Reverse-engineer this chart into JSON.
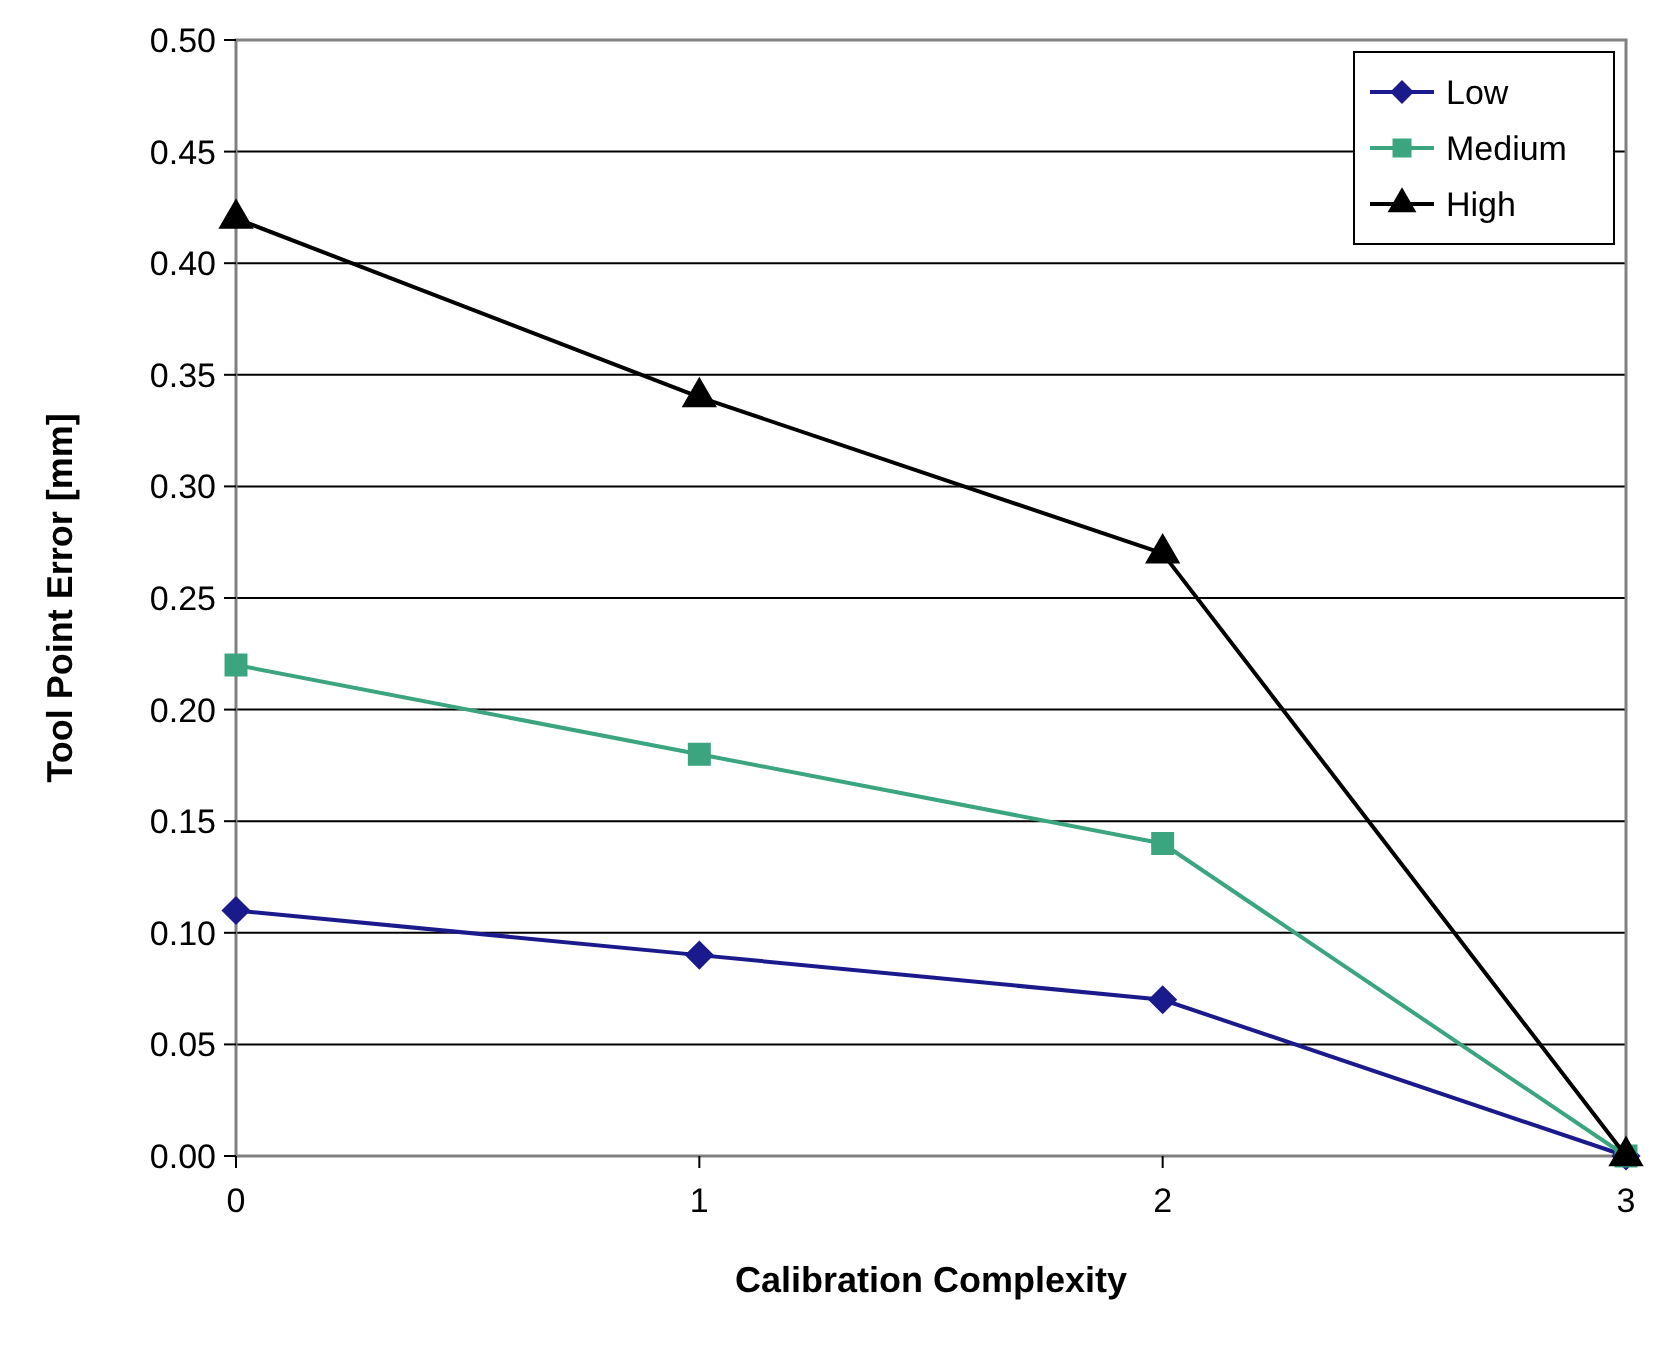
{
  "chart_data": {
    "type": "line",
    "xlabel": "Calibration Complexity",
    "ylabel": "Tool Point Error [mm]",
    "x": [
      0,
      1,
      2,
      3
    ],
    "xlim": [
      0,
      3
    ],
    "xticks": [
      0,
      1,
      2,
      3
    ],
    "ylim": [
      0,
      0.5
    ],
    "yticks": [
      {
        "value": 0,
        "label": "0.00"
      },
      {
        "value": 0.05,
        "label": "0.05"
      },
      {
        "value": 0.1,
        "label": "0.10"
      },
      {
        "value": 0.15,
        "label": "0.15"
      },
      {
        "value": 0.2,
        "label": "0.20"
      },
      {
        "value": 0.25,
        "label": "0.25"
      },
      {
        "value": 0.3,
        "label": "0.30"
      },
      {
        "value": 0.35,
        "label": "0.35"
      },
      {
        "value": 0.4,
        "label": "0.40"
      },
      {
        "value": 0.45,
        "label": "0.45"
      },
      {
        "value": 0.5,
        "label": "0.50"
      }
    ],
    "grid": "y",
    "legend": "top right",
    "line_style": "solid",
    "series": [
      {
        "name": "Low",
        "color": "#1a1a8c",
        "marker": "diamond",
        "values": [
          0.11,
          0.09,
          0.07,
          0
        ]
      },
      {
        "name": "Medium",
        "color": "#3aa57f",
        "marker": "square",
        "values": [
          0.22,
          0.18,
          0.14,
          0
        ]
      },
      {
        "name": "High",
        "color": "#000000",
        "marker": "triangle",
        "values": [
          0.42,
          0.34,
          0.27,
          0
        ]
      }
    ]
  }
}
